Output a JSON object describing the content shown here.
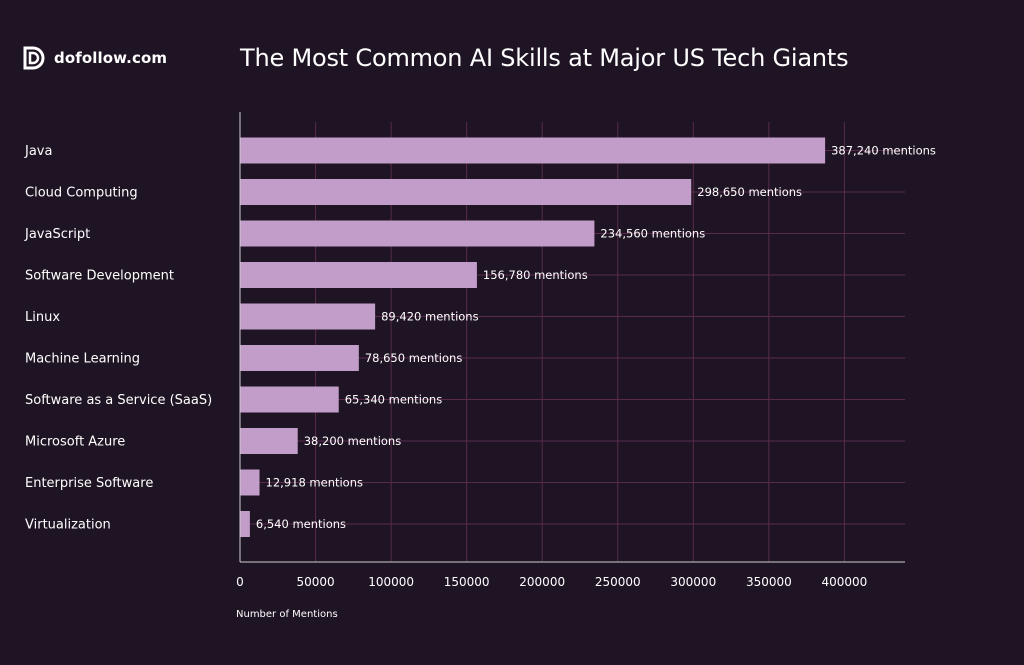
{
  "brand": {
    "name": "dofollow.com",
    "icon": "dofollow-logo-icon"
  },
  "colors": {
    "background": "#1f1423",
    "bar": "#c39dc9",
    "grid": "#5a2a4c",
    "axis": "#cfcfcf",
    "text": "#ffffff"
  },
  "chart_data": {
    "type": "bar",
    "orientation": "horizontal",
    "title": "The Most Common AI Skills at Major US Tech Giants",
    "xlabel": "Number of Mentions",
    "ylabel": "",
    "xlim": [
      0,
      440000
    ],
    "xticks": [
      0,
      50000,
      100000,
      150000,
      200000,
      250000,
      300000,
      350000,
      400000
    ],
    "xtick_labels": [
      "0",
      "50000",
      "100000",
      "150000",
      "200000",
      "250000",
      "300000",
      "350000",
      "400000"
    ],
    "grid": true,
    "categories": [
      "Java",
      "Cloud Computing",
      "JavaScript",
      "Software Development",
      "Linux",
      "Machine Learning",
      "Software as a Service (SaaS)",
      "Microsoft Azure",
      "Enterprise Software",
      "Virtualization"
    ],
    "values": [
      387240,
      298650,
      234560,
      156780,
      89420,
      78650,
      65340,
      38200,
      12918,
      6540
    ],
    "value_labels": [
      "387,240 mentions",
      "298,650 mentions",
      "234,560 mentions",
      "156,780 mentions",
      "89,420 mentions",
      "78,650 mentions",
      "65,340 mentions",
      "38,200 mentions",
      "12,918 mentions",
      "6,540 mentions"
    ]
  }
}
